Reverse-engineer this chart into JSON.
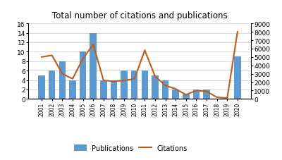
{
  "years": [
    2001,
    2002,
    2003,
    2004,
    2005,
    2006,
    2007,
    2008,
    2009,
    2010,
    2011,
    2012,
    2013,
    2014,
    2015,
    2016,
    2017,
    2018,
    2019,
    2020
  ],
  "publications": [
    5,
    6,
    8,
    4,
    10,
    14,
    4,
    4,
    6,
    6,
    6,
    5,
    4,
    2,
    1,
    2,
    2,
    0,
    0,
    9
  ],
  "citations": [
    5000,
    5200,
    3000,
    2400,
    4800,
    6500,
    2200,
    2100,
    2200,
    2400,
    5800,
    2700,
    1600,
    1200,
    500,
    1000,
    900,
    200,
    100,
    8000
  ],
  "bar_color": "#5B9BD5",
  "line_color": "#C55A11",
  "title": "Total number of citations and publications",
  "ylim_left": [
    0,
    16
  ],
  "ylim_right": [
    0,
    9000
  ],
  "yticks_left": [
    0,
    2,
    4,
    6,
    8,
    10,
    12,
    14,
    16
  ],
  "yticks_right": [
    0,
    1000,
    2000,
    3000,
    4000,
    5000,
    6000,
    7000,
    8000,
    9000
  ],
  "legend_labels": [
    "Publications",
    "Citations"
  ],
  "background_color": "#ffffff",
  "grid_color": "#d3d3d3"
}
